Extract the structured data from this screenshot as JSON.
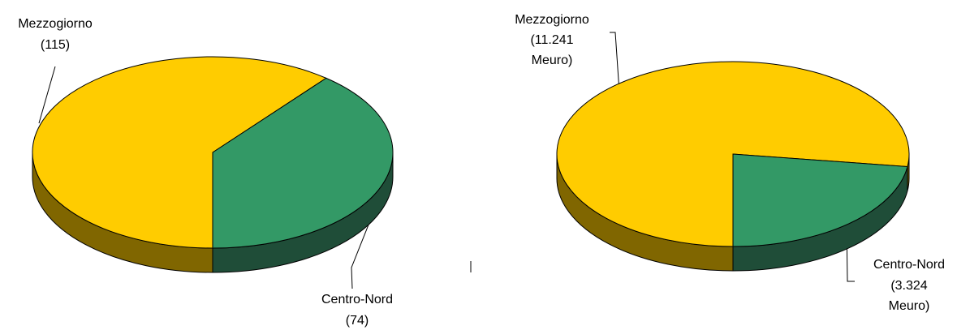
{
  "chart_data": [
    {
      "type": "pie",
      "categories": [
        "Mezzogiorno",
        "Centro-Nord"
      ],
      "values": [
        115,
        74
      ],
      "value_labels": [
        "(115)",
        "(74)"
      ],
      "colors": [
        "#ffcc00",
        "#339966"
      ],
      "side_colors": [
        "#806600",
        "#1f4d38"
      ]
    },
    {
      "type": "pie",
      "categories": [
        "Mezzogiorno",
        "Centro-Nord"
      ],
      "values": [
        11241,
        3324
      ],
      "value_labels": [
        "(11.241 Meuro)",
        "(3.324 Meuro)"
      ],
      "colors": [
        "#ffcc00",
        "#339966"
      ],
      "side_colors": [
        "#806600",
        "#1f4d38"
      ]
    }
  ]
}
